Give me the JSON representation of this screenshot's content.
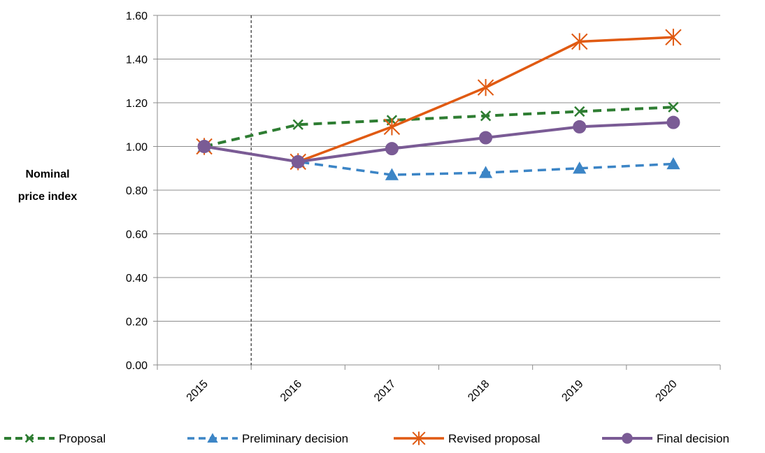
{
  "chart_data": {
    "type": "line",
    "categories": [
      "2015",
      "2016",
      "2017",
      "2018",
      "2019",
      "2020"
    ],
    "ylabel": "Nominal price index",
    "ylabel_lines": [
      "Nominal",
      "price index"
    ],
    "ylim": [
      0,
      1.6
    ],
    "yticks": [
      "0.00",
      "0.20",
      "0.40",
      "0.60",
      "0.80",
      "1.00",
      "1.20",
      "1.40",
      "1.60"
    ],
    "grid": true,
    "legend_position": "bottom",
    "reference_line": {
      "between": [
        "2015",
        "2016"
      ],
      "style": "dashed"
    },
    "series": [
      {
        "name": "Proposal",
        "values": [
          1.0,
          1.1,
          1.12,
          1.14,
          1.16,
          1.18
        ],
        "color": "#2e7d32",
        "dash": true,
        "marker": "x"
      },
      {
        "name": "Preliminary decision",
        "values": [
          1.0,
          0.93,
          0.87,
          0.88,
          0.9,
          0.92
        ],
        "color": "#3c85c6",
        "dash": true,
        "marker": "triangle"
      },
      {
        "name": "Revised proposal",
        "values": [
          1.0,
          0.93,
          1.09,
          1.27,
          1.48,
          1.5
        ],
        "color": "#e05a12",
        "dash": false,
        "marker": "star"
      },
      {
        "name": "Final decision",
        "values": [
          1.0,
          0.93,
          0.99,
          1.04,
          1.09,
          1.11
        ],
        "color": "#7a5b95",
        "dash": false,
        "marker": "circle"
      }
    ]
  }
}
